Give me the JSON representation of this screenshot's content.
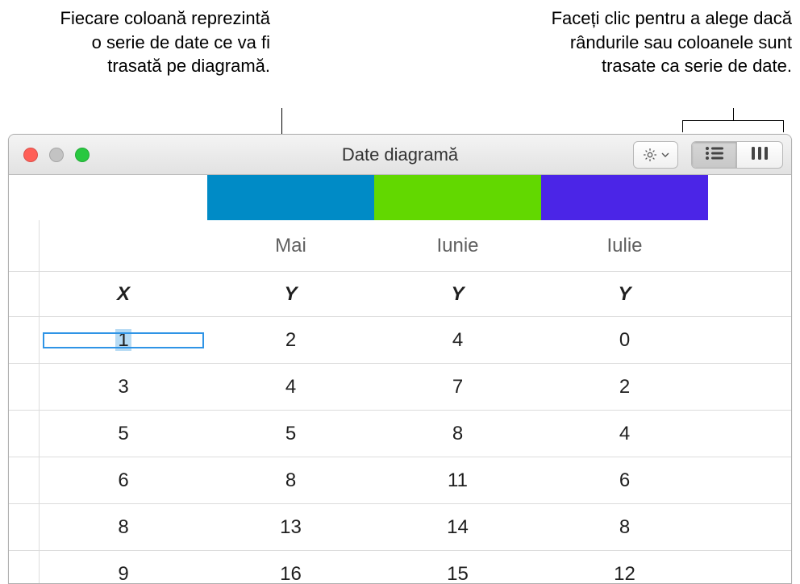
{
  "callouts": {
    "left": "Fiecare coloană reprezintă o serie de date ce va fi trasată pe diagramă.",
    "right": "Faceți clic pentru a alege dacă rândurile sau coloanele sunt trasate ca serie de date."
  },
  "window": {
    "title": "Date diagramă",
    "traffic": {
      "close_color": "#ff5f57",
      "min_color": "#c3c3c3",
      "max_color": "#28c840"
    }
  },
  "chart_data": {
    "type": "table",
    "series_colors": [
      "#008bc6",
      "#62d800",
      "#4b25e7"
    ],
    "months": [
      "Mai",
      "Iunie",
      "Iulie"
    ],
    "header_x": "X",
    "header_y": "Y",
    "rows": [
      {
        "x": "1",
        "y": [
          "2",
          "4",
          "0"
        ]
      },
      {
        "x": "3",
        "y": [
          "4",
          "7",
          "2"
        ]
      },
      {
        "x": "5",
        "y": [
          "5",
          "8",
          "4"
        ]
      },
      {
        "x": "6",
        "y": [
          "8",
          "11",
          "6"
        ]
      },
      {
        "x": "8",
        "y": [
          "13",
          "14",
          "8"
        ]
      },
      {
        "x": "9",
        "y": [
          "16",
          "15",
          "12"
        ]
      }
    ],
    "selected_cell": {
      "row": 0,
      "col": "x"
    },
    "grid_color": "#dcdcdc",
    "background_color": "#ffffff",
    "text_color": "#1f1f1f",
    "month_text_color": "#5f5f5f",
    "font_size": 24
  }
}
